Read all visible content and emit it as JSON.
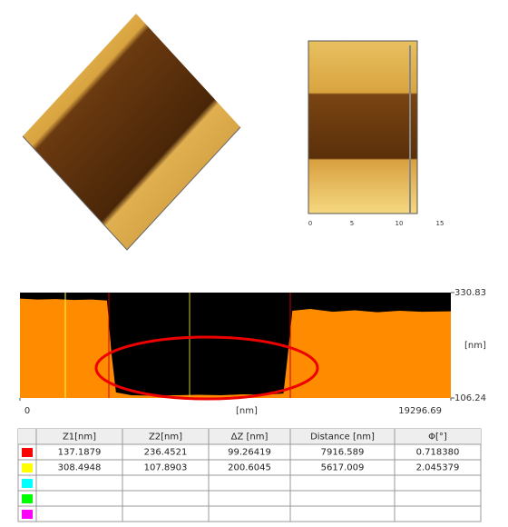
{
  "image_2d": {
    "xticks": [
      "0",
      "5",
      "10",
      "15"
    ]
  },
  "chart_data": {
    "type": "area",
    "color": "#ff8c00",
    "background": "#000000",
    "x": [
      0,
      800,
      1600,
      2400,
      3200,
      3900,
      4100,
      4300,
      5000,
      6000,
      7000,
      8000,
      9000,
      10000,
      11000,
      11800,
      12000,
      12200,
      13000,
      14000,
      15000,
      16000,
      17000,
      18000,
      19296.69
    ],
    "values": [
      318,
      316,
      317,
      315,
      316,
      314,
      200,
      118,
      112,
      111,
      112,
      113,
      112,
      114,
      113,
      116,
      200,
      292,
      296,
      290,
      293,
      289,
      292,
      290,
      291
    ],
    "xlim": [
      0,
      19296.69
    ],
    "ylim": [
      106.24,
      330.83
    ],
    "xticks": [
      0,
      19296.69
    ],
    "yticks": [
      106.24,
      330.83
    ],
    "xlabel": "[nm]",
    "ylabel": "[nm]"
  },
  "table": {
    "header": [
      "Z1[nm]",
      "Z2[nm]",
      "ΔZ [nm]",
      "Distance [nm]",
      "Φ[°]"
    ],
    "row_colors": [
      "#ff0000",
      "#ffff00",
      "#00ffff",
      "#00ff00",
      "#ff00ff"
    ],
    "rows": [
      [
        "137.1879",
        "236.4521",
        "99.26419",
        "7916.589",
        "0.718380"
      ],
      [
        "308.4948",
        "107.8903",
        "200.6045",
        "5617.009",
        "2.045379"
      ]
    ]
  }
}
